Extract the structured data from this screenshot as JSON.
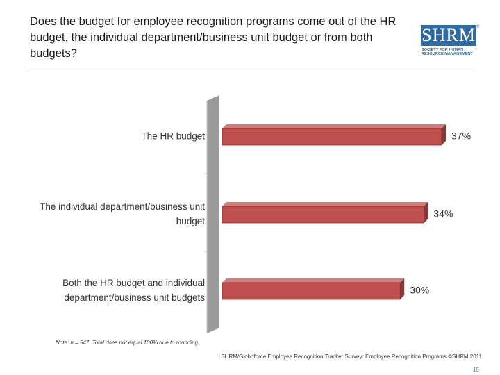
{
  "header": {
    "title": "Does the budget for employee recognition programs come out of the HR budget, the individual department/business unit budget or from both budgets?"
  },
  "logo": {
    "mark": "SHRM",
    "registered": "®",
    "subtitle_lines": [
      "SOCIETY FOR HUMAN",
      "RESOURCE MANAGEMENT"
    ]
  },
  "chart_data": {
    "type": "bar",
    "orientation": "horizontal",
    "categories": [
      [
        "The HR budget"
      ],
      [
        "The individual department/business unit",
        "budget"
      ],
      [
        "Both the HR budget and individual",
        "department/business unit budgets"
      ]
    ],
    "values": [
      37,
      34,
      30
    ],
    "value_labels": [
      "37%",
      "34%",
      "30%"
    ],
    "xlim": [
      0,
      37
    ],
    "title": "",
    "xlabel": "",
    "ylabel": "",
    "colors": {
      "bar": "#c0504d",
      "bar_top": "#d87a77",
      "bar_side": "#8c3532",
      "wall": "#9a9a9a"
    }
  },
  "footer": {
    "note": "Note: n = 547. Total does not equal 100% due to rounding.",
    "source": "SHRM/Globoforce Employee Recognition Tracker Survey: Employee Recognition Programs ©SHRM 2011",
    "page_number": "15"
  }
}
